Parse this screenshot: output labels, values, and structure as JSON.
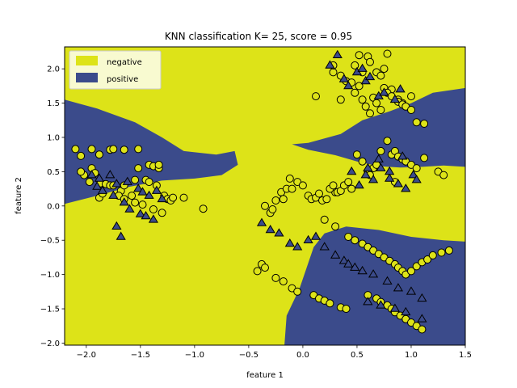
{
  "chart_data": {
    "type": "scatter",
    "title": "KNN classification K= 25, score = 0.95",
    "xlabel": "feature 1",
    "ylabel": "feature 2",
    "xlim": [
      -2.2,
      1.5
    ],
    "ylim": [
      -2.03,
      2.32
    ],
    "xticks": [
      -2.0,
      -1.5,
      -1.0,
      -0.5,
      0.0,
      0.5,
      1.0,
      1.5
    ],
    "yticks": [
      -2.0,
      -1.5,
      -1.0,
      -0.5,
      0.0,
      0.5,
      1.0,
      1.5,
      2.0
    ],
    "xtick_labels": [
      "−2.0",
      "−1.5",
      "−1.0",
      "−0.5",
      "0.0",
      "0.5",
      "1.0",
      "1.5"
    ],
    "ytick_labels": [
      "−2.0",
      "−1.5",
      "−1.0",
      "−0.5",
      "0.0",
      "0.5",
      "1.0",
      "1.5",
      "2.0"
    ],
    "legend_position": "top-left",
    "grid": false,
    "colors": {
      "negative": "#dde318",
      "positive": "#3b4b8b",
      "marker_edge": "#000000"
    },
    "legend": [
      {
        "label": "negative",
        "color": "#dde318"
      },
      {
        "label": "positive",
        "color": "#3b4b8b"
      }
    ],
    "markers": {
      "circle": "training points",
      "triangle": "test points"
    },
    "regions": {
      "positive_left_upper": [
        [
          -2.2,
          1.55
        ],
        [
          -1.9,
          1.42
        ],
        [
          -1.55,
          1.22
        ],
        [
          -1.3,
          1.0
        ],
        [
          -1.1,
          0.8
        ],
        [
          -0.8,
          0.75
        ],
        [
          -0.63,
          0.8
        ],
        [
          -0.6,
          0.6
        ],
        [
          -0.75,
          0.45
        ],
        [
          -1.0,
          0.4
        ],
        [
          -1.3,
          0.37
        ],
        [
          -1.6,
          0.28
        ],
        [
          -1.9,
          0.15
        ],
        [
          -2.2,
          0.03
        ]
      ],
      "positive_right_upper": [
        [
          1.5,
          1.72
        ],
        [
          1.2,
          1.65
        ],
        [
          1.0,
          1.5
        ],
        [
          0.8,
          1.38
        ],
        [
          0.55,
          1.25
        ],
        [
          0.35,
          1.05
        ],
        [
          0.05,
          0.92
        ],
        [
          -0.1,
          0.9
        ],
        [
          0.05,
          0.82
        ],
        [
          0.3,
          0.74
        ],
        [
          0.5,
          0.65
        ],
        [
          0.7,
          0.58
        ],
        [
          0.9,
          0.56
        ],
        [
          1.1,
          0.57
        ],
        [
          1.3,
          0.59
        ],
        [
          1.5,
          0.57
        ]
      ],
      "positive_bottom": [
        [
          -0.17,
          -2.03
        ],
        [
          -0.15,
          -1.6
        ],
        [
          -0.03,
          -1.2
        ],
        [
          0.1,
          -0.6
        ],
        [
          0.2,
          -0.4
        ],
        [
          0.4,
          -0.3
        ],
        [
          0.7,
          -0.35
        ],
        [
          1.0,
          -0.45
        ],
        [
          1.3,
          -0.5
        ],
        [
          1.5,
          -0.52
        ],
        [
          1.5,
          -2.03
        ]
      ]
    },
    "series": [
      {
        "name": "negative",
        "marker": "circle",
        "x": [
          -2.1,
          -1.95,
          -2.05,
          -1.88,
          -1.78,
          -1.75,
          -1.65,
          -1.52,
          -1.52,
          -1.42,
          -1.38,
          -1.33,
          -1.33,
          -2.02,
          -1.95,
          -2.05,
          -1.92,
          -1.97,
          -1.87,
          -1.82,
          -1.78,
          -1.75,
          -1.68,
          -1.65,
          -1.58,
          -1.55,
          -1.45,
          -1.42,
          -1.35,
          -1.28,
          -1.25,
          -1.22,
          -1.2,
          -1.1,
          -1.88,
          -1.85,
          -1.7,
          -1.65,
          -1.55,
          -1.48,
          -1.38,
          -1.3,
          -0.92,
          0.28,
          0.28,
          0.35,
          0.4,
          0.45,
          0.48,
          0.52,
          0.55,
          0.6,
          0.62,
          0.68,
          0.72,
          0.75,
          0.78,
          0.82,
          0.88,
          0.92,
          1.0,
          0.12,
          0.35,
          0.48,
          0.52,
          0.55,
          0.58,
          0.62,
          0.65,
          0.68,
          0.72,
          0.75,
          0.78,
          0.82,
          0.88,
          0.92,
          0.95,
          1.0,
          1.05,
          1.12,
          0.5,
          0.55,
          0.6,
          0.62,
          0.65,
          0.68,
          0.72,
          0.78,
          0.82,
          0.85,
          0.88,
          0.92,
          0.95,
          1.0,
          1.05,
          1.12,
          1.25,
          1.3,
          0.3,
          0.85,
          -0.35,
          -0.3,
          -0.28,
          -0.25,
          -0.2,
          -0.18,
          -0.15,
          -0.12,
          -0.1,
          -0.05,
          0.0,
          0.05,
          0.08,
          0.12,
          0.15,
          0.18,
          0.22,
          0.25,
          0.28,
          0.32,
          0.35,
          0.38,
          0.42,
          0.45,
          0.2,
          0.3,
          0.42,
          0.48,
          0.55,
          0.6,
          0.65,
          0.7,
          0.75,
          0.8,
          0.85,
          0.88,
          0.92,
          0.95,
          1.0,
          1.05,
          1.1,
          1.15,
          1.2,
          1.28,
          1.35,
          0.6,
          0.68,
          0.72,
          0.78,
          0.82,
          0.85,
          0.9,
          0.95,
          1.0,
          1.05,
          1.1,
          -0.42,
          -0.38,
          -0.35,
          -0.25,
          -0.18,
          -0.1,
          -0.05,
          0.1,
          0.15,
          0.2,
          0.25,
          0.35,
          0.4
        ],
        "y": [
          0.83,
          0.83,
          0.73,
          0.75,
          0.82,
          0.83,
          0.82,
          0.83,
          0.55,
          0.6,
          0.58,
          0.55,
          0.6,
          0.45,
          0.55,
          0.5,
          0.48,
          0.35,
          0.33,
          0.32,
          0.3,
          0.3,
          0.22,
          0.3,
          0.15,
          0.38,
          0.38,
          0.35,
          0.3,
          0.15,
          0.1,
          0.08,
          0.12,
          0.12,
          0.12,
          0.18,
          0.15,
          0.1,
          0.05,
          0.02,
          -0.05,
          -0.1,
          -0.04,
          1.95,
          2.05,
          1.9,
          1.82,
          1.8,
          2.05,
          2.2,
          1.95,
          2.18,
          2.1,
          1.95,
          1.9,
          2.0,
          2.22,
          1.7,
          1.55,
          1.5,
          1.6,
          1.6,
          1.55,
          1.65,
          1.75,
          1.55,
          1.45,
          1.35,
          1.58,
          1.5,
          1.4,
          1.72,
          1.65,
          1.6,
          1.52,
          1.48,
          1.45,
          1.4,
          1.22,
          1.2,
          0.75,
          0.65,
          0.5,
          0.45,
          0.55,
          0.6,
          0.8,
          0.95,
          0.75,
          0.8,
          0.72,
          0.68,
          0.65,
          0.6,
          0.55,
          0.7,
          0.5,
          0.45,
          0.2,
          0.35,
          0.0,
          -0.1,
          -0.05,
          0.08,
          0.2,
          0.1,
          0.25,
          0.4,
          0.25,
          0.35,
          0.3,
          0.15,
          0.1,
          0.12,
          0.18,
          0.08,
          0.1,
          0.25,
          0.3,
          0.2,
          0.22,
          0.3,
          0.35,
          0.25,
          -0.2,
          -0.3,
          -0.45,
          -0.5,
          -0.55,
          -0.6,
          -0.65,
          -0.7,
          -0.75,
          -0.8,
          -0.85,
          -0.9,
          -0.95,
          -1.0,
          -0.95,
          -0.88,
          -0.82,
          -0.78,
          -0.72,
          -0.68,
          -0.65,
          -1.3,
          -1.35,
          -1.4,
          -1.45,
          -1.5,
          -1.55,
          -1.6,
          -1.65,
          -1.7,
          -1.75,
          -1.8,
          -0.95,
          -0.85,
          -0.9,
          -1.05,
          -1.1,
          -1.2,
          -1.25,
          -1.3,
          -1.35,
          -1.38,
          -1.42,
          -1.48,
          -1.5
        ]
      },
      {
        "name": "positive",
        "marker": "triangle",
        "x": [
          -1.95,
          -1.88,
          -1.78,
          -1.72,
          -1.62,
          -1.52,
          -1.48,
          -1.42,
          -1.35,
          -1.3,
          -1.9,
          -1.85,
          -1.75,
          -1.65,
          -1.6,
          -1.5,
          -1.45,
          -1.38,
          -1.72,
          -1.68,
          0.25,
          0.32,
          0.38,
          0.42,
          0.5,
          0.55,
          0.58,
          0.62,
          0.7,
          0.75,
          0.85,
          0.9,
          0.45,
          0.58,
          0.65,
          0.72,
          0.8,
          0.88,
          0.95,
          1.02,
          0.52,
          0.6,
          0.7,
          0.8,
          0.92,
          1.05,
          -0.38,
          -0.3,
          -0.22,
          -0.12,
          -0.05,
          0.05,
          0.12,
          0.2,
          0.3,
          0.38,
          0.42,
          0.48,
          0.55,
          0.65,
          0.78,
          0.88,
          1.0,
          1.1,
          0.6,
          0.72,
          0.85,
          0.95,
          1.1
        ],
        "y": [
          0.45,
          0.4,
          0.45,
          0.32,
          0.35,
          0.25,
          0.2,
          0.15,
          0.22,
          0.1,
          0.28,
          0.22,
          0.15,
          0.05,
          -0.05,
          -0.12,
          -0.15,
          -0.2,
          -0.3,
          -0.45,
          2.05,
          2.2,
          1.85,
          1.75,
          1.95,
          2.0,
          1.82,
          1.88,
          1.6,
          1.65,
          1.55,
          1.7,
          0.5,
          0.45,
          0.38,
          0.55,
          0.4,
          0.32,
          0.25,
          0.45,
          0.3,
          0.55,
          0.68,
          0.5,
          0.72,
          0.38,
          -0.25,
          -0.35,
          -0.4,
          -0.55,
          -0.6,
          -0.5,
          -0.45,
          -0.6,
          -0.72,
          -0.8,
          -0.85,
          -0.9,
          -0.95,
          -1.0,
          -1.1,
          -1.2,
          -1.25,
          -1.35,
          -1.4,
          -1.45,
          -1.5,
          -1.55,
          -1.65
        ]
      }
    ]
  }
}
